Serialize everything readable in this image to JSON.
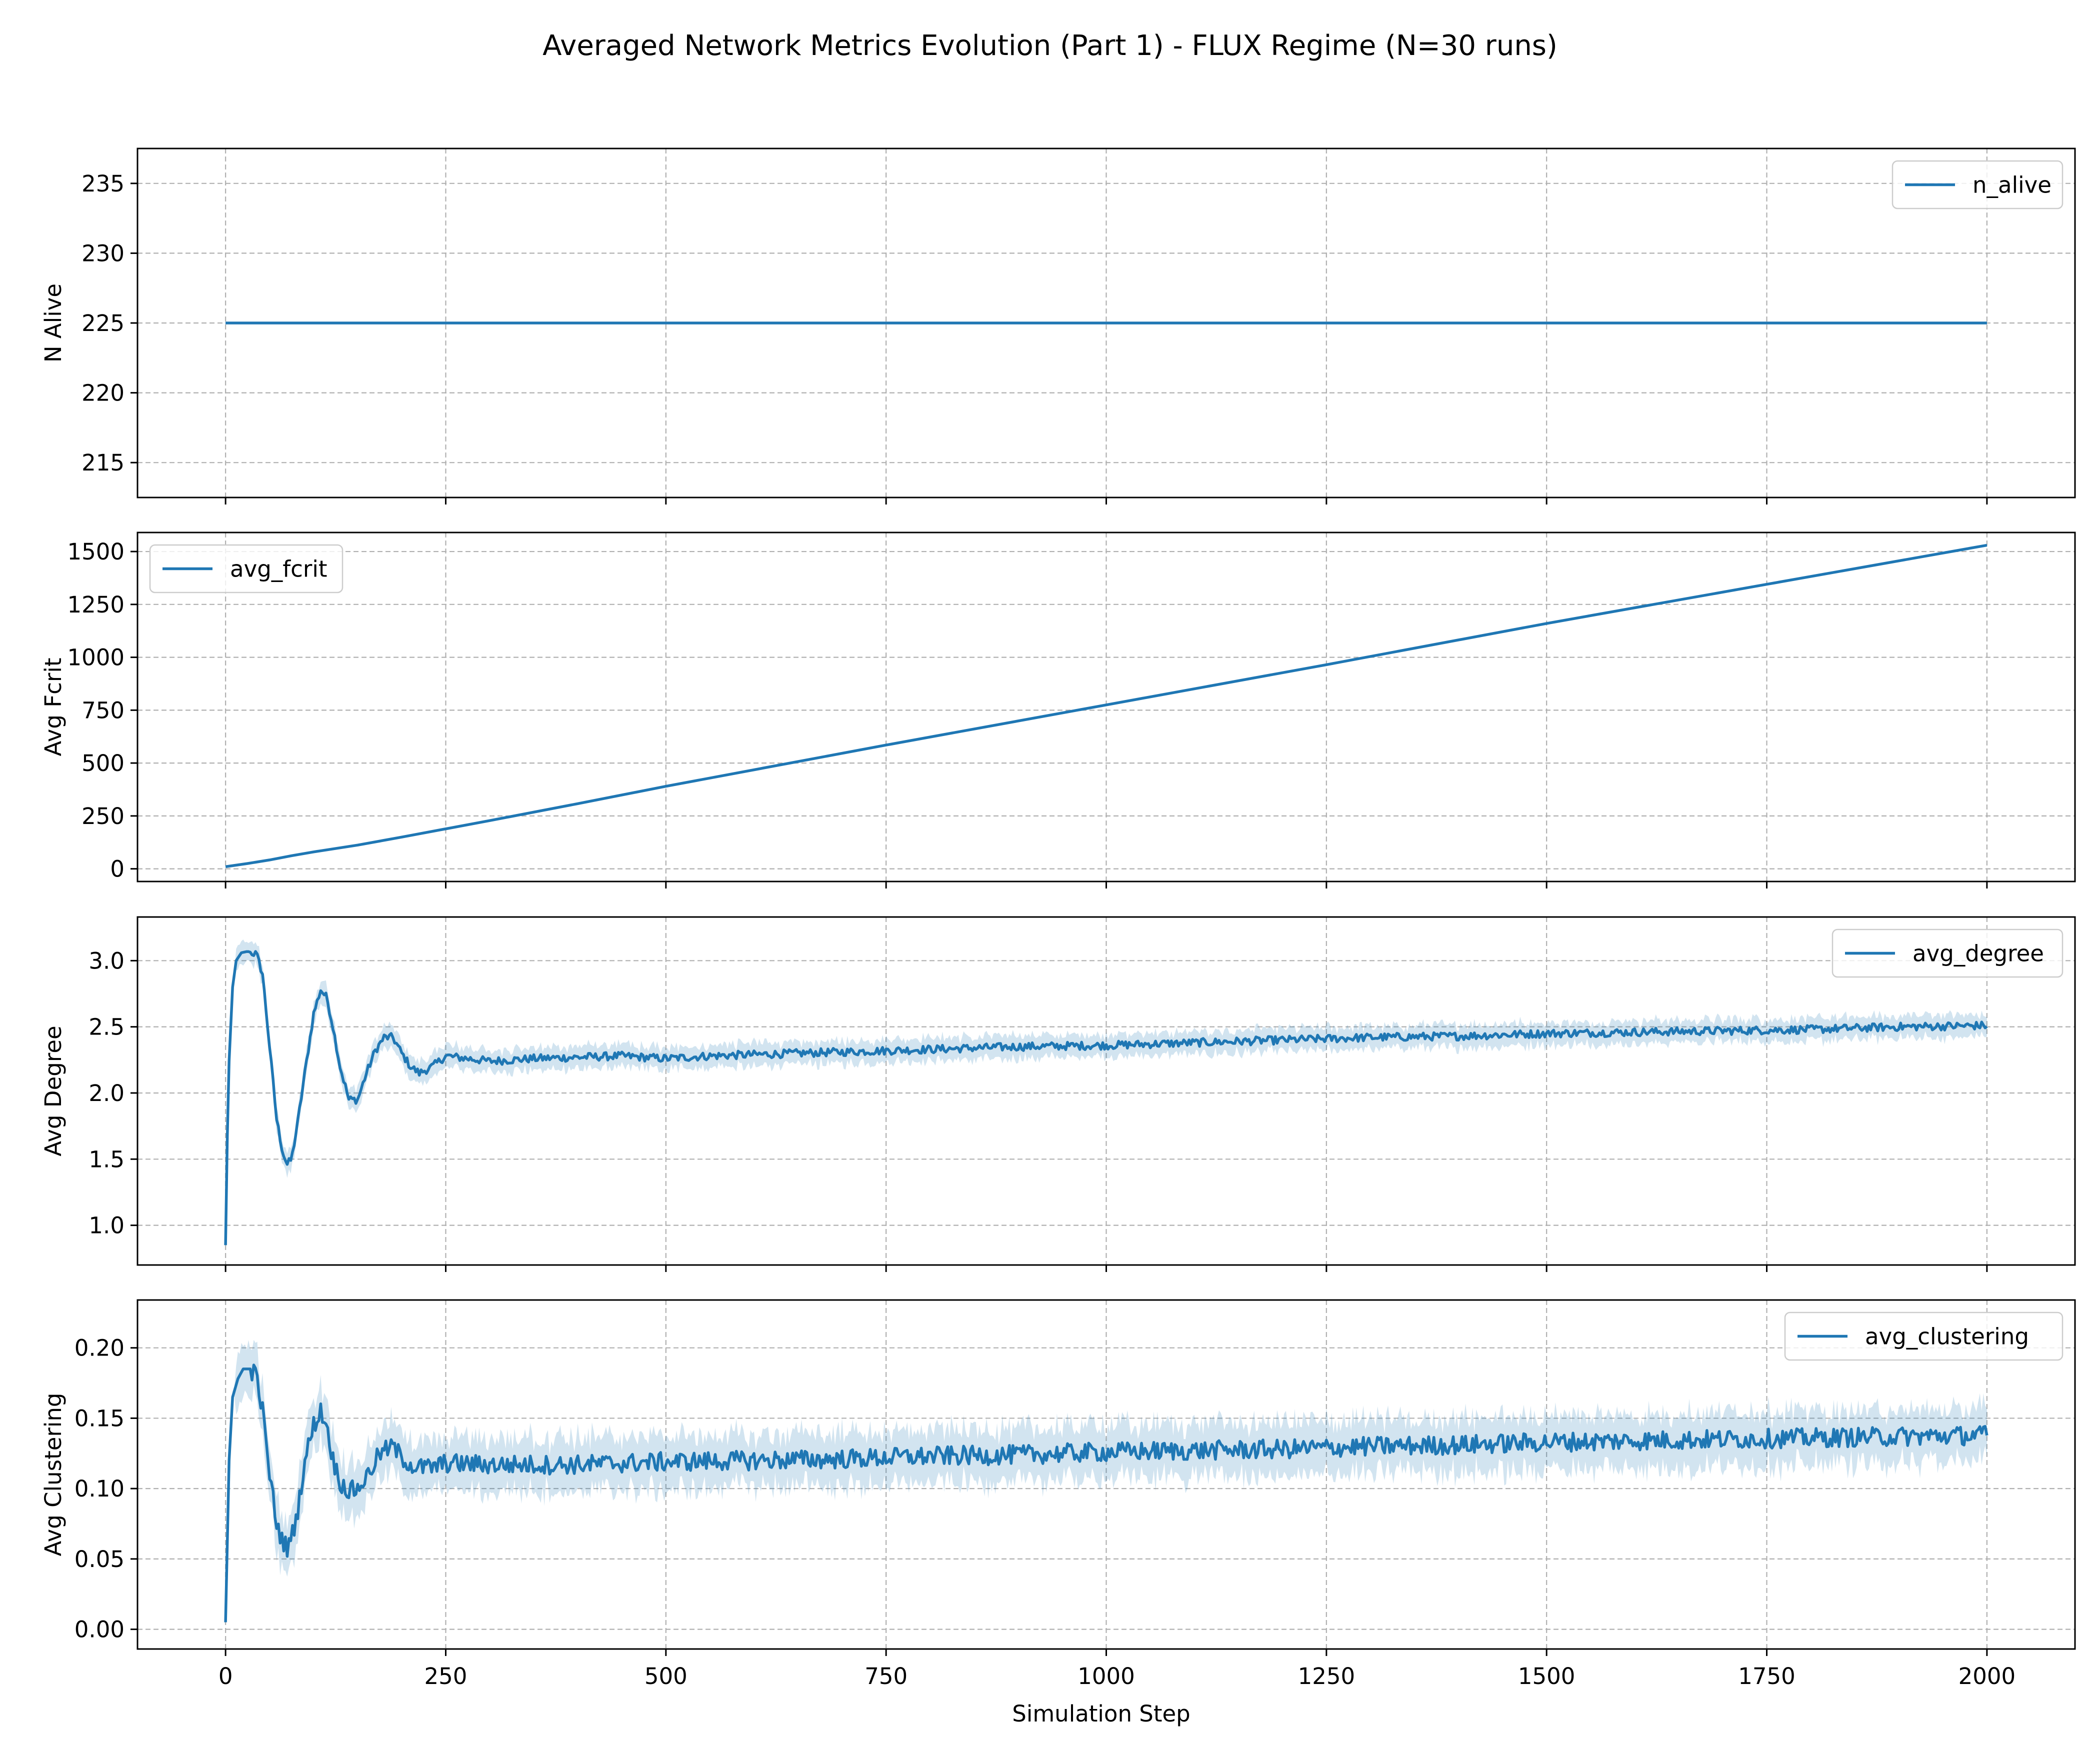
{
  "figure": {
    "title": "Averaged Network Metrics Evolution (Part 1) - FLUX Regime (N=30 runs)"
  },
  "style": {
    "line_color": "#1f77b4",
    "band_color": "#1f77b4",
    "band_opacity": 0.2,
    "grid_color": "#b0b0b0"
  },
  "chart_data": [
    {
      "type": "line",
      "xlabel": "",
      "ylabel": "N Alive",
      "xlim": [
        -100,
        2100
      ],
      "ylim": [
        212.5,
        237.5
      ],
      "x_ticks": [
        0,
        250,
        500,
        750,
        1000,
        1250,
        1500,
        1750,
        2000
      ],
      "x_tick_labels_shown": false,
      "y_ticks": [
        215,
        220,
        225,
        230,
        235
      ],
      "y_tick_labels": [
        "215",
        "220",
        "225",
        "230",
        "235"
      ],
      "grid": true,
      "legend": "upper right",
      "series": [
        {
          "name": "n_alive",
          "x": [
            0,
            2000
          ],
          "values": [
            225,
            225
          ],
          "band": null
        }
      ]
    },
    {
      "type": "line",
      "xlabel": "",
      "ylabel": "Avg Fcrit",
      "xlim": [
        -100,
        2100
      ],
      "ylim": [
        -60,
        1590
      ],
      "x_ticks": [
        0,
        250,
        500,
        750,
        1000,
        1250,
        1500,
        1750,
        2000
      ],
      "x_tick_labels_shown": false,
      "y_ticks": [
        0,
        250,
        500,
        750,
        1000,
        1250,
        1500
      ],
      "y_tick_labels": [
        "0",
        "250",
        "500",
        "750",
        "1000",
        "1250",
        "1500"
      ],
      "grid": true,
      "legend": "upper left",
      "series": [
        {
          "name": "avg_fcrit",
          "x": [
            0,
            25,
            50,
            75,
            100,
            150,
            200,
            300,
            400,
            500,
            750,
            1000,
            1250,
            1500,
            1750,
            2000
          ],
          "values": [
            10,
            25,
            42,
            62,
            80,
            112,
            150,
            228,
            308,
            390,
            585,
            775,
            965,
            1160,
            1345,
            1530
          ],
          "band": null
        }
      ]
    },
    {
      "type": "line",
      "xlabel": "",
      "ylabel": "Avg Degree",
      "xlim": [
        -100,
        2100
      ],
      "ylim": [
        0.7,
        3.33
      ],
      "x_ticks": [
        0,
        250,
        500,
        750,
        1000,
        1250,
        1500,
        1750,
        2000
      ],
      "x_tick_labels_shown": false,
      "y_ticks": [
        1.0,
        1.5,
        2.0,
        2.5,
        3.0
      ],
      "y_tick_labels": [
        "1.0",
        "1.5",
        "2.0",
        "2.5",
        "3.0"
      ],
      "grid": true,
      "legend": "upper right",
      "series": [
        {
          "name": "avg_degree",
          "x": [
            0,
            3,
            8,
            12,
            18,
            25,
            35,
            42,
            50,
            58,
            65,
            70,
            75,
            82,
            90,
            100,
            108,
            115,
            122,
            130,
            140,
            150,
            160,
            170,
            180,
            190,
            200,
            210,
            220,
            235,
            250,
            275,
            300,
            350,
            400,
            450,
            500,
            550,
            600,
            700,
            800,
            900,
            1000,
            1100,
            1200,
            1300,
            1400,
            1500,
            1600,
            1700,
            1800,
            1900,
            2000
          ],
          "values": [
            0.85,
            2.1,
            2.8,
            3.0,
            3.06,
            3.07,
            3.05,
            2.9,
            2.35,
            1.8,
            1.55,
            1.46,
            1.5,
            1.78,
            2.15,
            2.6,
            2.78,
            2.72,
            2.5,
            2.2,
            1.95,
            1.95,
            2.15,
            2.32,
            2.42,
            2.42,
            2.3,
            2.2,
            2.15,
            2.2,
            2.28,
            2.26,
            2.24,
            2.26,
            2.27,
            2.28,
            2.26,
            2.28,
            2.29,
            2.31,
            2.33,
            2.35,
            2.36,
            2.38,
            2.4,
            2.42,
            2.43,
            2.45,
            2.46,
            2.47,
            2.48,
            2.5,
            2.51
          ],
          "band_halfwidth": 0.08
        }
      ]
    },
    {
      "type": "line",
      "xlabel": "Simulation Step",
      "ylabel": "Avg Clustering",
      "xlim": [
        -100,
        2100
      ],
      "ylim": [
        -0.014,
        0.234
      ],
      "x_ticks": [
        0,
        250,
        500,
        750,
        1000,
        1250,
        1500,
        1750,
        2000
      ],
      "x_tick_labels": [
        "0",
        "250",
        "500",
        "750",
        "1000",
        "1250",
        "1500",
        "1750",
        "2000"
      ],
      "x_tick_labels_shown": true,
      "y_ticks": [
        0.0,
        0.05,
        0.1,
        0.15,
        0.2
      ],
      "y_tick_labels": [
        "0.00",
        "0.05",
        "0.10",
        "0.15",
        "0.20"
      ],
      "grid": true,
      "legend": "upper right",
      "series": [
        {
          "name": "avg_clustering",
          "x": [
            0,
            4,
            8,
            14,
            20,
            28,
            35,
            42,
            50,
            58,
            65,
            70,
            75,
            82,
            90,
            100,
            108,
            115,
            122,
            130,
            140,
            150,
            160,
            175,
            190,
            200,
            215,
            235,
            250,
            300,
            400,
            500,
            600,
            700,
            800,
            900,
            1000,
            1100,
            1200,
            1300,
            1400,
            1500,
            1600,
            1700,
            1800,
            1900,
            2000
          ],
          "values": [
            0.005,
            0.12,
            0.165,
            0.178,
            0.185,
            0.185,
            0.18,
            0.155,
            0.11,
            0.075,
            0.062,
            0.058,
            0.065,
            0.085,
            0.12,
            0.145,
            0.155,
            0.145,
            0.12,
            0.105,
            0.098,
            0.1,
            0.108,
            0.125,
            0.13,
            0.122,
            0.115,
            0.115,
            0.118,
            0.117,
            0.117,
            0.119,
            0.12,
            0.121,
            0.123,
            0.124,
            0.126,
            0.127,
            0.128,
            0.13,
            0.131,
            0.133,
            0.134,
            0.135,
            0.136,
            0.137,
            0.138
          ],
          "band_halfwidth": 0.018
        }
      ]
    }
  ]
}
